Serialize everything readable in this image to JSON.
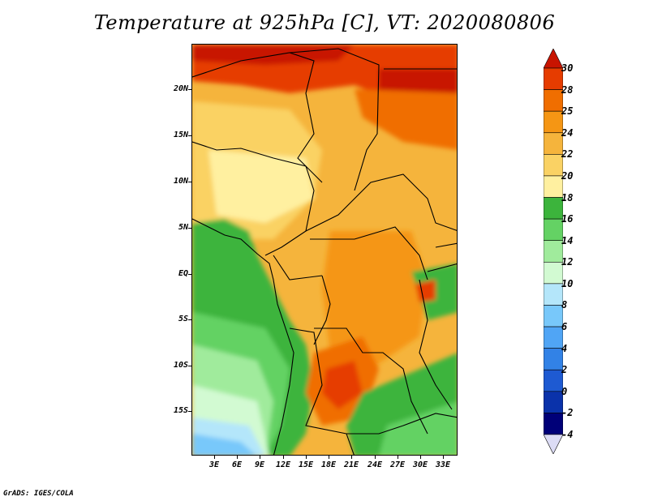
{
  "title": "Temperature at 925hPa [C], VT: 2020080806",
  "footer": "GrADS: IGES/COLA",
  "map": {
    "lat_labels": [
      "20N",
      "15N",
      "10N",
      "5N",
      "EQ",
      "5S",
      "10S",
      "15S"
    ],
    "lon_labels": [
      "3E",
      "6E",
      "9E",
      "12E",
      "15E",
      "18E",
      "21E",
      "24E",
      "27E",
      "30E",
      "33E"
    ]
  },
  "colorbar": {
    "labels": [
      "30",
      "28",
      "25",
      "24",
      "22",
      "20",
      "18",
      "16",
      "14",
      "12",
      "10",
      "8",
      "6",
      "4",
      "2",
      "0",
      "-2",
      "-4"
    ],
    "colors": [
      "#c81400",
      "#e63c00",
      "#f06e00",
      "#f59614",
      "#f5b43c",
      "#fad264",
      "#fff0a0",
      "#3cb43c",
      "#64d264",
      "#a0eb9c",
      "#d2fad2",
      "#b4e6fa",
      "#78c8fa",
      "#50a5f5",
      "#3282e6",
      "#1e5ad2",
      "#0a32aa",
      "#000078",
      "#dcdcf5"
    ]
  }
}
